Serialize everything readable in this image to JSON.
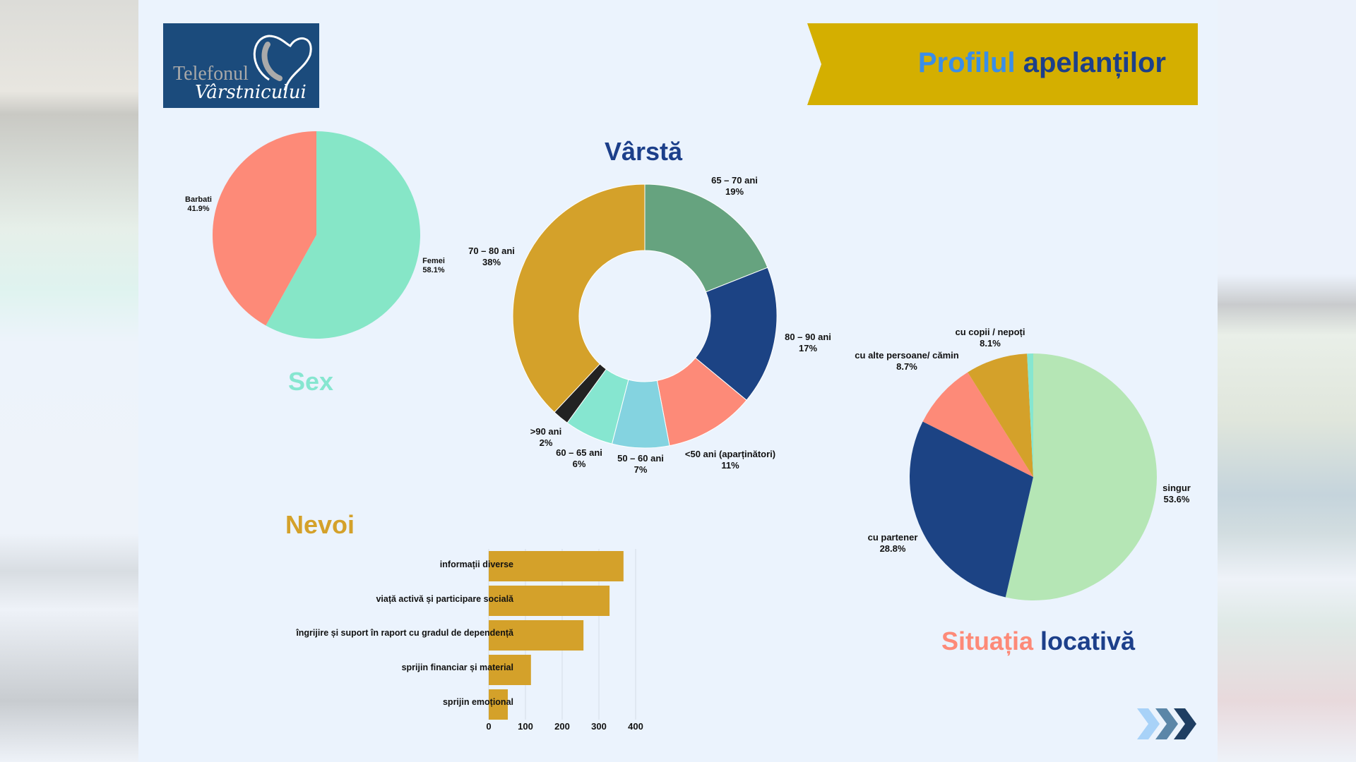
{
  "logo": {
    "line1": "Telefonul",
    "line2": "Vârstnicului"
  },
  "title": {
    "part1": "Profilul",
    "part2": "apelanților",
    "color1": "#3a8ee8",
    "color2": "#1c3f8a"
  },
  "chart_data": [
    {
      "type": "pie",
      "title": "Sex",
      "slices": [
        {
          "label": "Femei",
          "value": 58.1,
          "display": "58.1%",
          "color": "#86e6c7"
        },
        {
          "label": "Barbati",
          "value": 41.9,
          "display": "41.9%",
          "color": "#fd8a78"
        }
      ]
    },
    {
      "type": "pie",
      "subtype": "donut",
      "title": "Vârstă",
      "slices": [
        {
          "label": "65 – 70 ani",
          "value": 19,
          "display": "19%",
          "color": "#66a37f"
        },
        {
          "label": "80 – 90 ani",
          "value": 17,
          "display": "17%",
          "color": "#1c4384"
        },
        {
          "label": "<50 ani (aparținători)",
          "value": 11,
          "display": "11%",
          "color": "#fd8a78"
        },
        {
          "label": "50 – 60 ani",
          "value": 7,
          "display": "7%",
          "color": "#84d3e0"
        },
        {
          "label": "60 – 65 ani",
          "value": 6,
          "display": "6%",
          "color": "#86e6d0"
        },
        {
          "label": ">90 ani",
          "value": 2,
          "display": "2%",
          "color": "#222222"
        },
        {
          "label": "70 – 80 ani",
          "value": 38,
          "display": "38%",
          "color": "#d4a12a"
        }
      ]
    },
    {
      "type": "pie",
      "title": "Situația locativă",
      "title_parts": [
        "Situația",
        "locativă"
      ],
      "slices": [
        {
          "label": "singur",
          "value": 53.6,
          "display": "53.6%",
          "color": "#b5e6b5"
        },
        {
          "label": "cu partener",
          "value": 28.8,
          "display": "28.8%",
          "color": "#1c4384"
        },
        {
          "label": "cu alte persoane/ cămin",
          "value": 8.7,
          "display": "8.7%",
          "color": "#fd8a78"
        },
        {
          "label": "cu copii / nepoți",
          "value": 8.1,
          "display": "8.1%",
          "color": "#d4a12a"
        },
        {
          "label": "",
          "value": 0.8,
          "display": "",
          "color": "#86e6d0"
        }
      ]
    },
    {
      "type": "bar",
      "orientation": "horizontal",
      "title": "Nevoi",
      "categories": [
        "informații diverse",
        "viață activă și participare socială",
        "îngrijire și suport în raport cu gradul de dependență",
        "sprijin financiar și material",
        "sprijin emoțional"
      ],
      "values": [
        367,
        329,
        258,
        115,
        52
      ],
      "xlim": [
        0,
        400
      ],
      "xticks": [
        "0",
        "100",
        "200",
        "300",
        "400"
      ],
      "color": "#d4a12a",
      "grid": true
    }
  ]
}
